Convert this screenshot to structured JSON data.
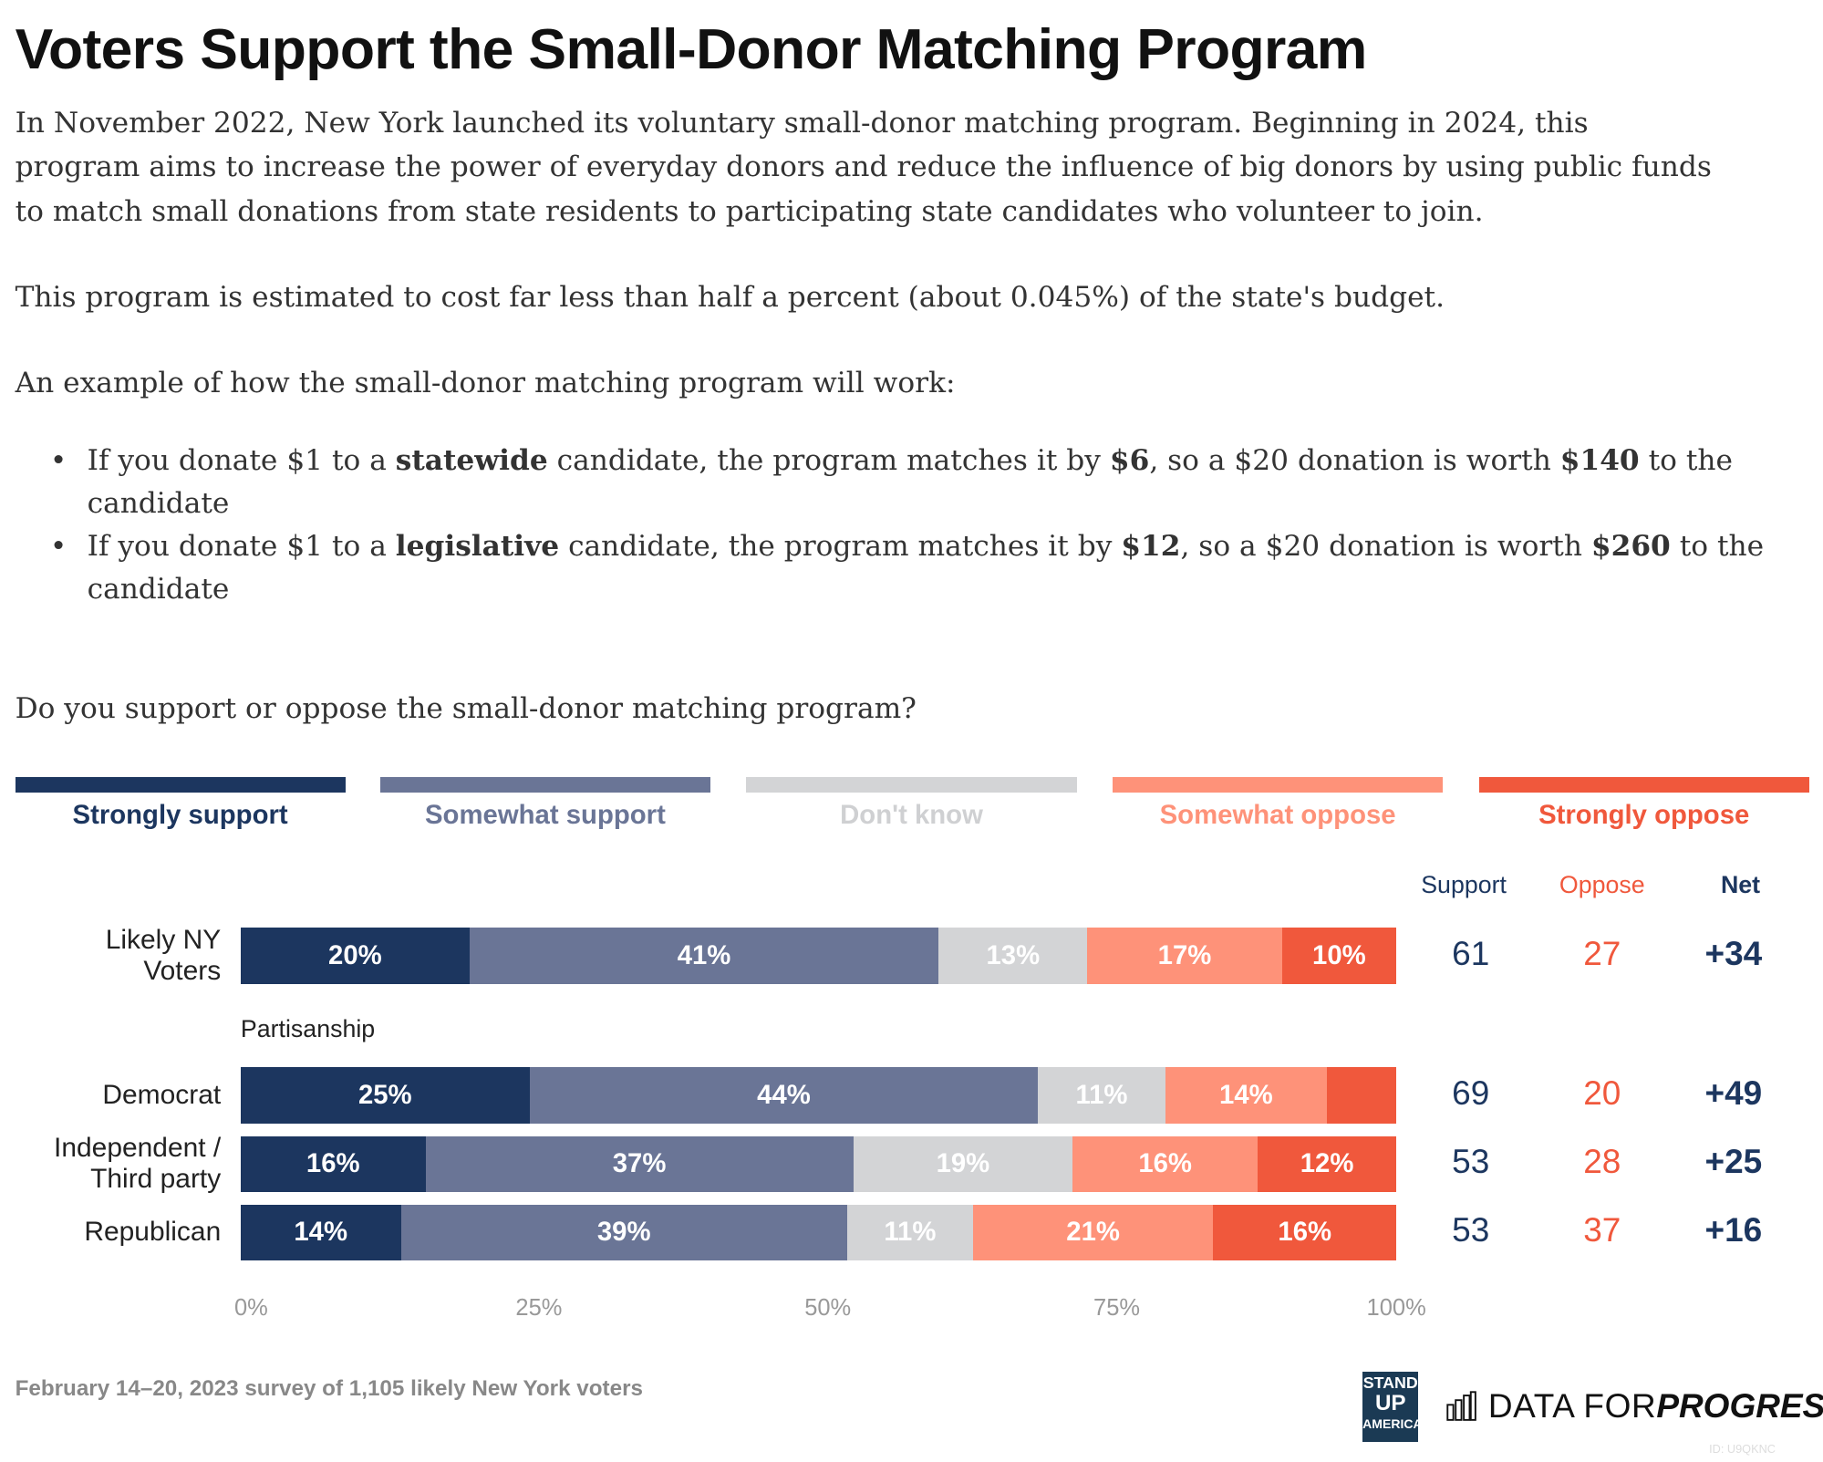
{
  "title": "Voters Support the Small-Donor Matching Program",
  "intro": [
    "In November 2022, New York launched its voluntary small-donor matching program. Beginning in 2024, this",
    "program aims to increase the power of everyday donors and reduce the influence of big donors by using public funds",
    "to match small donations from state residents to participating state candidates who volunteer to join."
  ],
  "cost_text": "This program is estimated to cost far less than half a percent (about 0.045%) of the state's budget.",
  "example_text": "An example of how the small-donor matching program will work:",
  "bullets": [
    {
      "a": "If you donate $1 to a ",
      "b1": "statewide",
      "c": " candidate, the program matches it by ",
      "b2": "$6",
      "d": ", so a $20 donation is worth ",
      "b3": "$140",
      "e": " to the candidate"
    },
    {
      "a": "If you donate $1 to a ",
      "b1": "legislative",
      "c": " candidate, the program matches it by ",
      "b2": "$12",
      "d": ", so a $20 donation is worth ",
      "b3": "$260",
      "e": " to the candidate"
    }
  ],
  "question": "Do you support or oppose the small-donor matching program?",
  "chart_data": {
    "type": "bar",
    "orientation": "horizontal-stacked",
    "legend_placement": "top",
    "series": [
      {
        "name": "Strongly support",
        "color": "#1c365f",
        "label_color": "#1c365f"
      },
      {
        "name": "Somewhat support",
        "color": "#6a7596",
        "label_color": "#6a7596"
      },
      {
        "name": "Don't know",
        "color": "#d3d4d6",
        "label_color": "#cfd0d2"
      },
      {
        "name": "Somewhat oppose",
        "color": "#fe9279",
        "label_color": "#fe9279"
      },
      {
        "name": "Strongly oppose",
        "color": "#f0583c",
        "label_color": "#f0583c"
      }
    ],
    "columns": {
      "support": "Support",
      "oppose": "Oppose",
      "net": "Net"
    },
    "group_label": "Partisanship",
    "rows": [
      {
        "label": "Likely NY Voters",
        "label_lines": [
          "Likely NY",
          "Voters"
        ],
        "values": [
          20,
          41,
          13,
          17,
          10
        ],
        "labels": [
          "20%",
          "41%",
          "13%",
          "17%",
          "10%"
        ],
        "support": "61",
        "oppose": "27",
        "net": "+34"
      },
      {
        "label": "Democrat",
        "label_lines": [
          "Democrat"
        ],
        "values": [
          25,
          44,
          11,
          14,
          6
        ],
        "labels": [
          "25%",
          "44%",
          "11%",
          "14%",
          ""
        ],
        "support": "69",
        "oppose": "20",
        "net": "+49"
      },
      {
        "label": "Independent / Third party",
        "label_lines": [
          "Independent /",
          "Third party"
        ],
        "values": [
          16,
          37,
          19,
          16,
          12
        ],
        "labels": [
          "16%",
          "37%",
          "19%",
          "16%",
          "12%"
        ],
        "support": "53",
        "oppose": "28",
        "net": "+25"
      },
      {
        "label": "Republican",
        "label_lines": [
          "Republican"
        ],
        "values": [
          14,
          39,
          11,
          21,
          16
        ],
        "labels": [
          "14%",
          "39%",
          "11%",
          "21%",
          "16%"
        ],
        "support": "53",
        "oppose": "37",
        "net": "+16"
      }
    ],
    "xlim": [
      0,
      100
    ],
    "xticks": [
      "0%",
      "25%",
      "50%",
      "75%",
      "100%"
    ],
    "colors": {
      "support_num": "#1c365f",
      "oppose_num": "#f0583c",
      "net_num": "#1c365f"
    }
  },
  "footer": "February 14–20, 2023 survey of 1,105 likely New York voters",
  "logos": {
    "standup": [
      "STAND",
      "UP",
      "AMERICA"
    ],
    "dfp_a": "DATA FOR ",
    "dfp_b": "PROGRESS"
  },
  "id_text": "ID: U9QKNC"
}
